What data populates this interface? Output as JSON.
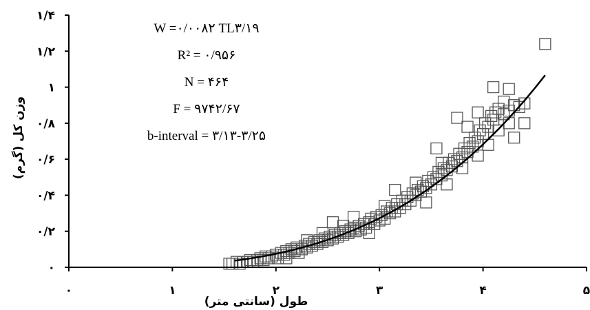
{
  "chart_data": {
    "type": "scatter",
    "title": "",
    "xlabel": "طول (سانتی متر)",
    "ylabel": "وزن کل (گرم)",
    "xlim": [
      0,
      5
    ],
    "ylim": [
      0,
      1.4
    ],
    "x_ticks": [
      {
        "value": 0,
        "label": "۰"
      },
      {
        "value": 1,
        "label": "۱"
      },
      {
        "value": 2,
        "label": "۲"
      },
      {
        "value": 3,
        "label": "۳"
      },
      {
        "value": 4,
        "label": "۴"
      },
      {
        "value": 5,
        "label": "۵"
      }
    ],
    "y_ticks": [
      {
        "value": 0,
        "label": "۰"
      },
      {
        "value": 0.2,
        "label": "۰/۲"
      },
      {
        "value": 0.4,
        "label": "۰/۴"
      },
      {
        "value": 0.6,
        "label": "۰/۶"
      },
      {
        "value": 0.8,
        "label": "۰/۸"
      },
      {
        "value": 1.0,
        "label": "۱"
      },
      {
        "value": 1.2,
        "label": "۱/۲"
      },
      {
        "value": 1.4,
        "label": "۱/۴"
      }
    ],
    "stats": [
      "W =۰/۰۰۸۲ TL۳/۱۹",
      "R² = ۰/۹۵۶",
      "N = ۴۶۴",
      "F = ۹۷۴۲/۶۷",
      "b-interval = ۳/۱۳-۳/۲۵"
    ],
    "fit": {
      "a": 0.0082,
      "b": 3.19,
      "x_range": [
        1.6,
        4.6
      ]
    },
    "marker_color": "#555555",
    "fit_color": "#000000",
    "points": [
      [
        1.55,
        0.02
      ],
      [
        1.58,
        0.02
      ],
      [
        1.62,
        0.03
      ],
      [
        1.65,
        0.02
      ],
      [
        1.68,
        0.03
      ],
      [
        1.72,
        0.03
      ],
      [
        1.75,
        0.04
      ],
      [
        1.78,
        0.03
      ],
      [
        1.82,
        0.04
      ],
      [
        1.85,
        0.05
      ],
      [
        1.88,
        0.04
      ],
      [
        1.9,
        0.06
      ],
      [
        1.93,
        0.05
      ],
      [
        1.96,
        0.06
      ],
      [
        2.0,
        0.07
      ],
      [
        2.02,
        0.05
      ],
      [
        2.05,
        0.08
      ],
      [
        2.08,
        0.07
      ],
      [
        2.1,
        0.09
      ],
      [
        2.13,
        0.08
      ],
      [
        2.15,
        0.1
      ],
      [
        2.18,
        0.09
      ],
      [
        2.2,
        0.11
      ],
      [
        2.22,
        0.08
      ],
      [
        2.25,
        0.1
      ],
      [
        2.28,
        0.12
      ],
      [
        2.3,
        0.11
      ],
      [
        2.32,
        0.13
      ],
      [
        2.35,
        0.12
      ],
      [
        2.37,
        0.14
      ],
      [
        2.4,
        0.13
      ],
      [
        2.42,
        0.15
      ],
      [
        2.45,
        0.14
      ],
      [
        2.47,
        0.16
      ],
      [
        2.5,
        0.15
      ],
      [
        2.52,
        0.17
      ],
      [
        2.55,
        0.16
      ],
      [
        2.57,
        0.18
      ],
      [
        2.6,
        0.17
      ],
      [
        2.62,
        0.19
      ],
      [
        2.65,
        0.18
      ],
      [
        2.67,
        0.2
      ],
      [
        2.7,
        0.19
      ],
      [
        2.72,
        0.21
      ],
      [
        2.75,
        0.22
      ],
      [
        2.77,
        0.2
      ],
      [
        2.8,
        0.23
      ],
      [
        2.82,
        0.21
      ],
      [
        2.85,
        0.24
      ],
      [
        2.87,
        0.22
      ],
      [
        2.9,
        0.25
      ],
      [
        2.92,
        0.27
      ],
      [
        2.95,
        0.24
      ],
      [
        2.97,
        0.28
      ],
      [
        3.0,
        0.26
      ],
      [
        3.02,
        0.29
      ],
      [
        3.05,
        0.27
      ],
      [
        3.07,
        0.31
      ],
      [
        3.1,
        0.3
      ],
      [
        3.12,
        0.33
      ],
      [
        3.15,
        0.31
      ],
      [
        3.17,
        0.35
      ],
      [
        3.2,
        0.33
      ],
      [
        3.22,
        0.37
      ],
      [
        3.25,
        0.35
      ],
      [
        3.27,
        0.39
      ],
      [
        3.3,
        0.37
      ],
      [
        3.32,
        0.41
      ],
      [
        3.35,
        0.4
      ],
      [
        3.37,
        0.43
      ],
      [
        3.4,
        0.42
      ],
      [
        3.42,
        0.45
      ],
      [
        3.45,
        0.44
      ],
      [
        3.47,
        0.48
      ],
      [
        3.5,
        0.46
      ],
      [
        3.52,
        0.5
      ],
      [
        3.55,
        0.49
      ],
      [
        3.57,
        0.53
      ],
      [
        3.6,
        0.51
      ],
      [
        3.62,
        0.55
      ],
      [
        3.65,
        0.54
      ],
      [
        3.67,
        0.58
      ],
      [
        3.7,
        0.56
      ],
      [
        3.72,
        0.6
      ],
      [
        3.75,
        0.59
      ],
      [
        3.77,
        0.63
      ],
      [
        3.8,
        0.61
      ],
      [
        3.82,
        0.66
      ],
      [
        3.85,
        0.64
      ],
      [
        3.87,
        0.69
      ],
      [
        3.9,
        0.67
      ],
      [
        3.92,
        0.72
      ],
      [
        3.95,
        0.7
      ],
      [
        3.97,
        0.76
      ],
      [
        4.0,
        0.74
      ],
      [
        4.02,
        0.8
      ],
      [
        4.05,
        0.78
      ],
      [
        4.08,
        0.84
      ],
      [
        4.1,
        0.82
      ],
      [
        4.12,
        0.86
      ],
      [
        4.15,
        0.88
      ],
      [
        4.2,
        0.85
      ],
      [
        4.25,
        0.87
      ],
      [
        4.3,
        0.9
      ],
      [
        4.35,
        0.89
      ],
      [
        4.4,
        0.91
      ],
      [
        4.2,
        0.92
      ],
      [
        4.1,
        1.0
      ],
      [
        4.25,
        0.99
      ],
      [
        4.6,
        1.24
      ],
      [
        2.55,
        0.25
      ],
      [
        2.75,
        0.28
      ],
      [
        3.15,
        0.43
      ],
      [
        3.55,
        0.66
      ],
      [
        3.65,
        0.46
      ],
      [
        3.8,
        0.55
      ],
      [
        3.95,
        0.62
      ],
      [
        4.05,
        0.68
      ],
      [
        3.75,
        0.83
      ],
      [
        4.3,
        0.72
      ],
      [
        4.4,
        0.8
      ],
      [
        3.45,
        0.36
      ],
      [
        3.35,
        0.47
      ],
      [
        3.05,
        0.34
      ],
      [
        2.9,
        0.19
      ],
      [
        2.65,
        0.23
      ],
      [
        2.45,
        0.19
      ],
      [
        2.3,
        0.15
      ],
      [
        2.1,
        0.05
      ],
      [
        3.6,
        0.58
      ],
      [
        3.85,
        0.78
      ],
      [
        4.15,
        0.76
      ],
      [
        4.25,
        0.8
      ],
      [
        3.95,
        0.86
      ]
    ]
  }
}
